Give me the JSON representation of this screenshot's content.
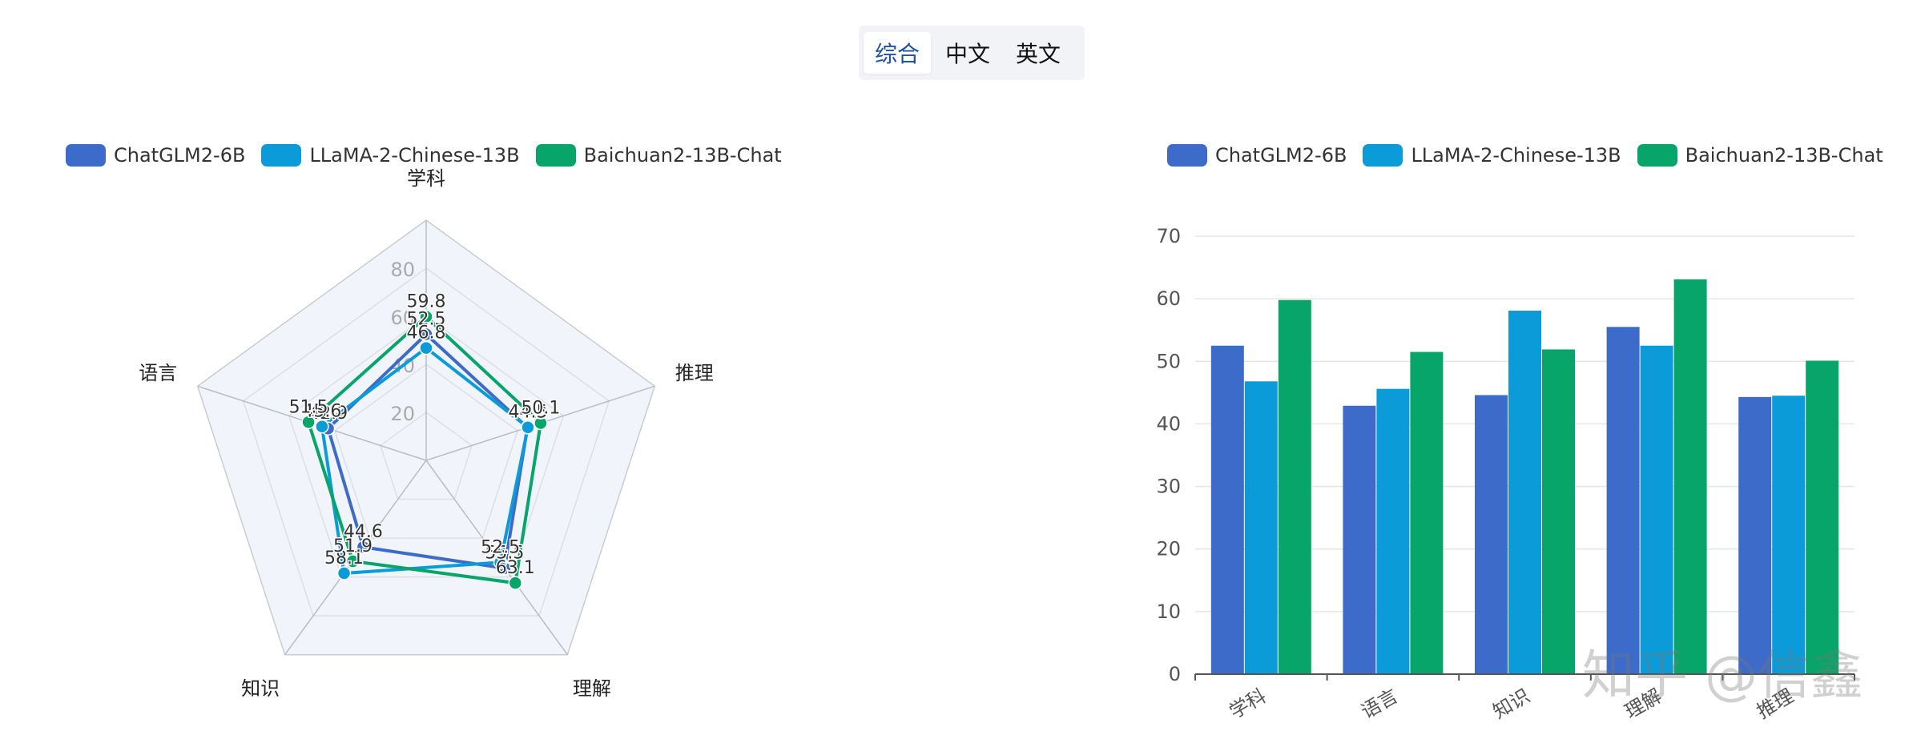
{
  "tabs": [
    {
      "label": "综合",
      "active": true
    },
    {
      "label": "中文",
      "active": false
    },
    {
      "label": "英文",
      "active": false
    }
  ],
  "colors": {
    "ChatGLM2-6B": "#3d6bc9",
    "LLaMA-2-Chinese-13B": "#0a9bd8",
    "Baichuan2-13B-Chat": "#07a56a"
  },
  "watermark": "知乎 @信鑫",
  "chart_data": [
    {
      "type": "radar",
      "indicators": [
        "学科",
        "推理",
        "理解",
        "知识",
        "语言"
      ],
      "radial_ticks": [
        20,
        40,
        60,
        80
      ],
      "radial_max": 100,
      "legend": [
        "ChatGLM2-6B",
        "LLaMA-2-Chinese-13B",
        "Baichuan2-13B-Chat"
      ],
      "legend_position": "top-left",
      "series": [
        {
          "name": "ChatGLM2-6B",
          "values": [
            52.5,
            44.3,
            55.5,
            44.6,
            42.9
          ]
        },
        {
          "name": "LLaMA-2-Chinese-13B",
          "values": [
            46.8,
            44.5,
            52.5,
            58.1,
            45.6
          ]
        },
        {
          "name": "Baichuan2-13B-Chat",
          "values": [
            59.8,
            50.1,
            63.1,
            51.9,
            51.5
          ]
        }
      ]
    },
    {
      "type": "bar",
      "categories": [
        "学科",
        "语言",
        "知识",
        "理解",
        "推理"
      ],
      "ylim": [
        0,
        70
      ],
      "yticks": [
        0,
        10,
        20,
        30,
        40,
        50,
        60,
        70
      ],
      "grid": true,
      "legend": [
        "ChatGLM2-6B",
        "LLaMA-2-Chinese-13B",
        "Baichuan2-13B-Chat"
      ],
      "legend_position": "top",
      "series": [
        {
          "name": "ChatGLM2-6B",
          "values": [
            52.5,
            42.9,
            44.6,
            55.5,
            44.3
          ]
        },
        {
          "name": "LLaMA-2-Chinese-13B",
          "values": [
            46.8,
            45.6,
            58.1,
            52.5,
            44.5
          ]
        },
        {
          "name": "Baichuan2-13B-Chat",
          "values": [
            59.8,
            51.5,
            51.9,
            63.1,
            50.1
          ]
        }
      ]
    }
  ]
}
